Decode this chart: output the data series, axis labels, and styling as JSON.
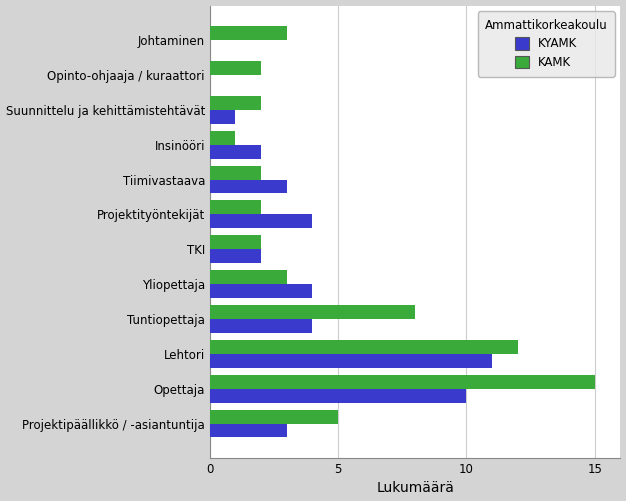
{
  "categories": [
    "Johtaminen",
    "Opinto-ohjaaja / kuraattori",
    "Suunnittelu ja kehittämistehtävät",
    "Insinööri",
    "Tiimivastaava",
    "Projektityöntekijät",
    "TKI",
    "Yliopettaja",
    "Tuntiopettaja",
    "Lehtori",
    "Opettaja",
    "Projektipäällikkö / -asiantuntija"
  ],
  "kyamk_values": [
    0,
    0,
    1,
    2,
    3,
    4,
    2,
    4,
    4,
    11,
    10,
    3
  ],
  "kamk_values": [
    3,
    2,
    2,
    1,
    2,
    2,
    2,
    3,
    8,
    12,
    15,
    5
  ],
  "kyamk_color": "#3a3acc",
  "kamk_color": "#3aaa3a",
  "xlabel": "Lukumäärä",
  "legend_title": "Ammattikorkeakoulu",
  "legend_labels": [
    "KYAMK",
    "KAMK"
  ],
  "xlim": [
    0,
    16
  ],
  "xticks": [
    0,
    5,
    10,
    15
  ],
  "figure_background": "#d4d4d4",
  "plot_background": "#ffffff",
  "bar_height": 0.4,
  "tick_fontsize": 8.5,
  "label_fontsize": 10
}
